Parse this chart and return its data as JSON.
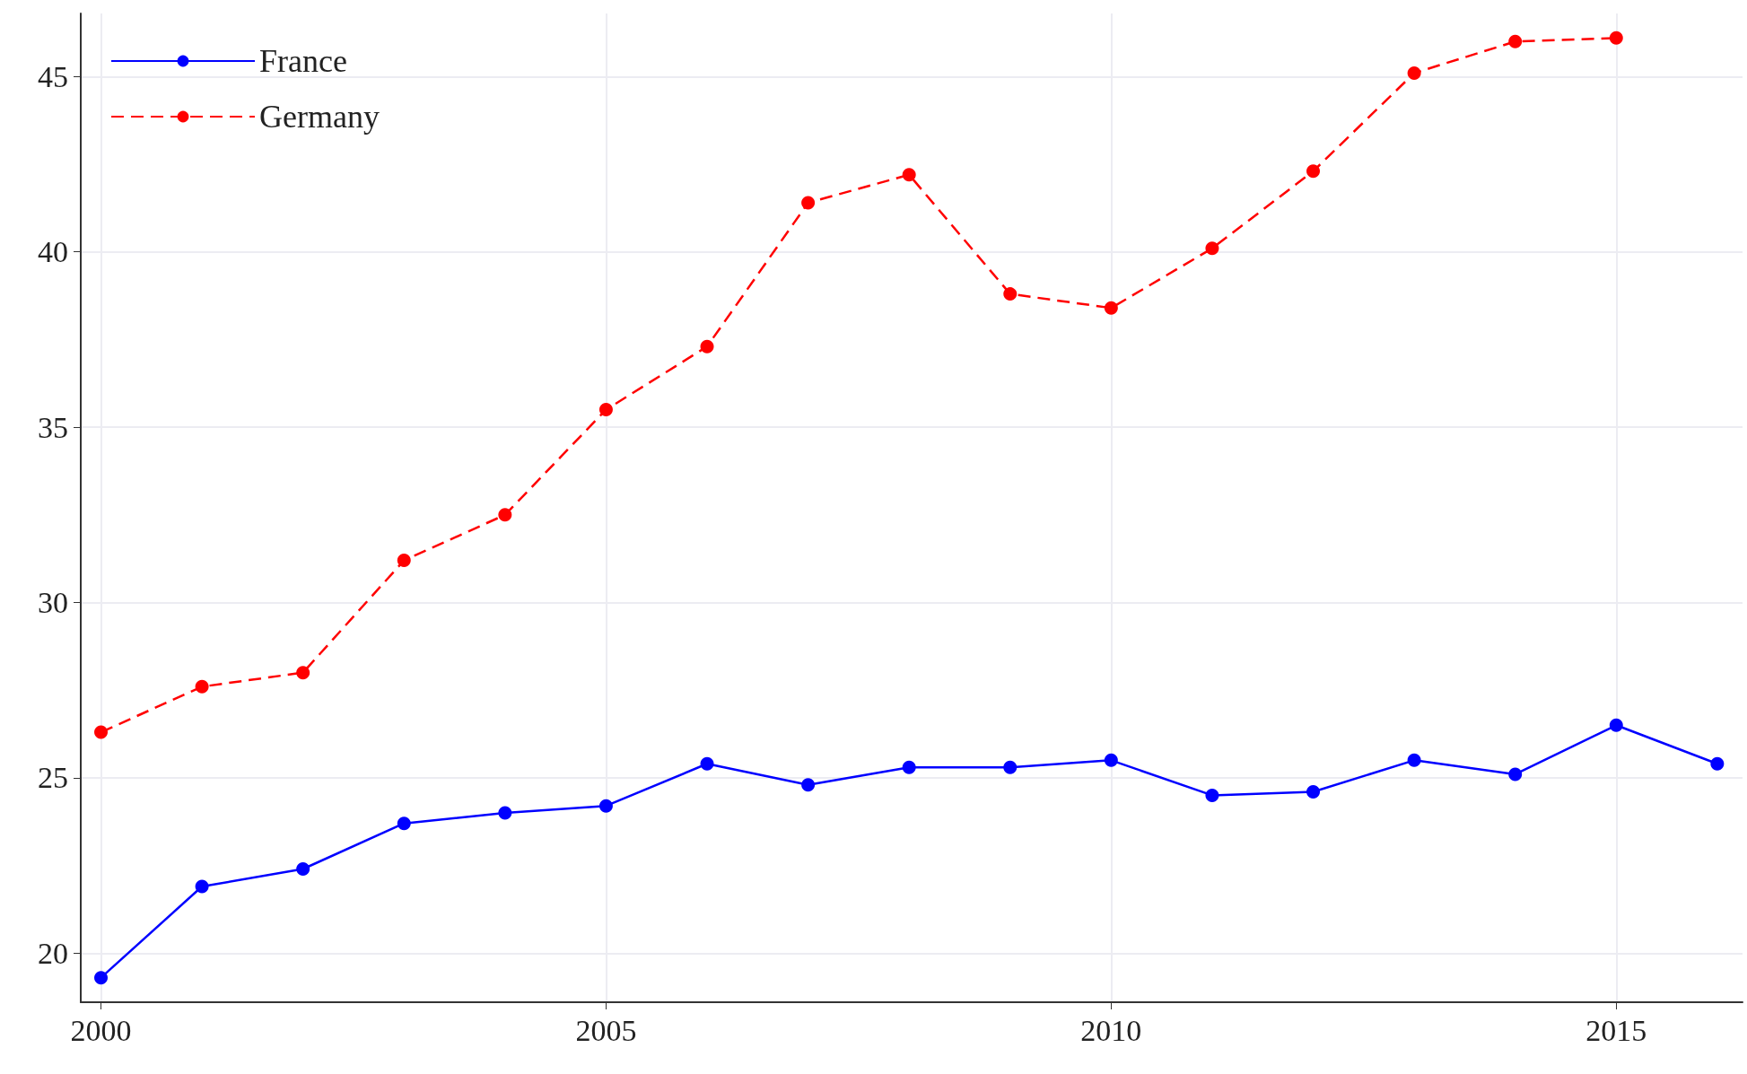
{
  "chart_data": {
    "type": "line",
    "x": [
      2000,
      2001,
      2002,
      2003,
      2004,
      2005,
      2006,
      2007,
      2008,
      2009,
      2010,
      2011,
      2012,
      2013,
      2014,
      2015,
      2016
    ],
    "series": [
      {
        "name": "France",
        "color": "#0000ff",
        "line_style": "solid",
        "values": [
          19.3,
          21.9,
          22.4,
          23.7,
          24.0,
          24.2,
          25.4,
          24.8,
          25.3,
          25.3,
          25.5,
          24.5,
          24.6,
          25.5,
          25.1,
          26.5,
          25.4
        ]
      },
      {
        "name": "Germany",
        "color": "#ff0000",
        "line_style": "dashed",
        "values": [
          26.3,
          27.6,
          28.0,
          31.2,
          32.5,
          35.5,
          37.3,
          41.4,
          42.2,
          38.8,
          38.4,
          40.1,
          42.3,
          45.1,
          46.0,
          46.1,
          null
        ]
      }
    ],
    "xlim": [
      1999.8,
      2016.25
    ],
    "xticks": [
      2000,
      2005,
      2010,
      2015
    ],
    "ylim": [
      18.6,
      46.8
    ],
    "yticks": [
      20,
      25,
      30,
      35,
      40,
      45
    ],
    "grid": true,
    "legend": "top left",
    "marker": "circle"
  }
}
